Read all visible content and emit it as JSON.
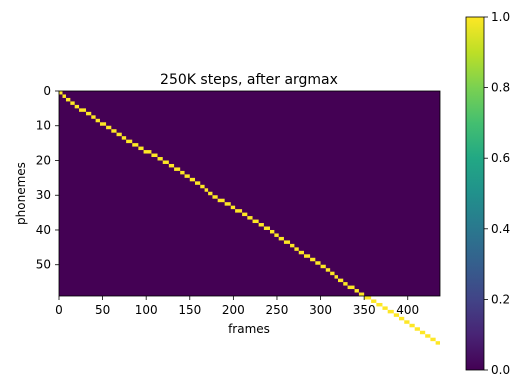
{
  "chart_data": {
    "type": "heatmap",
    "title": "250K steps, after argmax",
    "xlabel": "frames",
    "ylabel": "phonemes",
    "xlim": [
      0,
      437
    ],
    "ylim": [
      59,
      0
    ],
    "x_ticks": [
      0,
      50,
      100,
      150,
      200,
      250,
      300,
      350,
      400
    ],
    "y_ticks": [
      0,
      10,
      20,
      30,
      40,
      50
    ],
    "colormap": "viridis",
    "background_value": 0.0,
    "alignment_value": 1.0,
    "colorbar": {
      "range": [
        0.0,
        1.0
      ],
      "ticks": [
        "0.0",
        "0.2",
        "0.4",
        "0.6",
        "0.8",
        "1.0"
      ]
    },
    "alignment_start_frames": [
      0,
      4,
      8,
      13,
      18,
      23,
      31,
      37,
      42,
      47,
      54,
      60,
      66,
      72,
      77,
      84,
      91,
      97,
      106,
      113,
      119,
      126,
      132,
      139,
      144,
      150,
      156,
      162,
      167,
      171,
      176,
      182,
      190,
      197,
      202,
      210,
      216,
      222,
      229,
      235,
      242,
      247,
      252,
      258,
      265,
      270,
      275,
      281,
      288,
      294,
      300,
      306,
      311,
      316,
      320,
      326,
      331,
      339,
      344,
      350,
      358,
      364,
      371,
      377,
      384,
      390,
      396,
      402,
      408,
      414,
      420,
      426,
      432,
      437
    ]
  },
  "colors": {
    "background": "#440154",
    "alignment": "#fde725"
  }
}
